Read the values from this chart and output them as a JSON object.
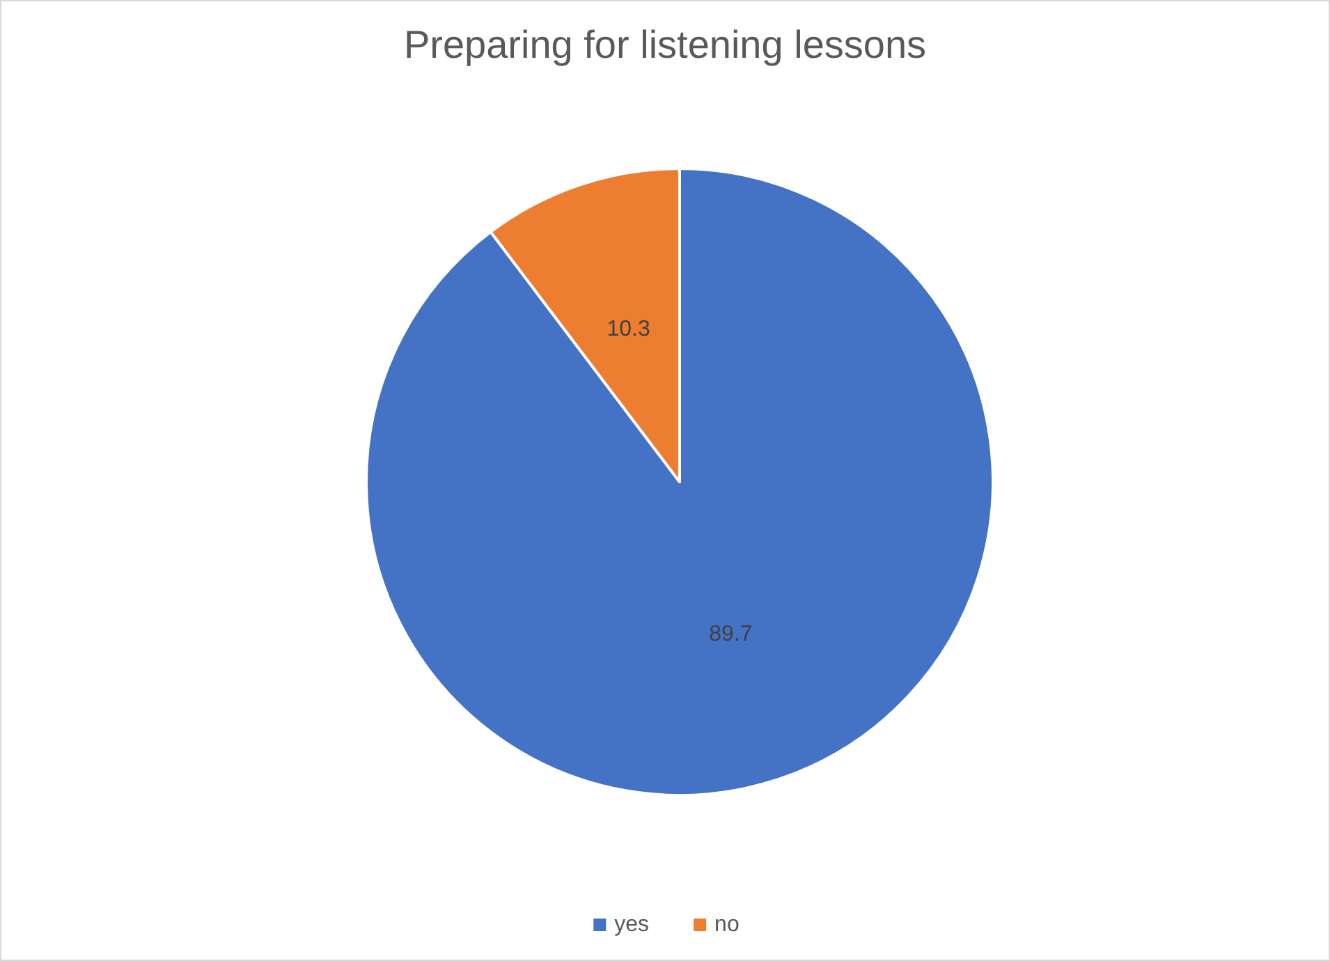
{
  "chart_data": {
    "type": "pie",
    "title": "Preparing for listening lessons",
    "categories": [
      "yes",
      "no"
    ],
    "values": [
      89.7,
      10.3
    ],
    "colors": [
      "#4472c4",
      "#ed7d31"
    ],
    "data_labels": true,
    "legend": "bottom"
  }
}
